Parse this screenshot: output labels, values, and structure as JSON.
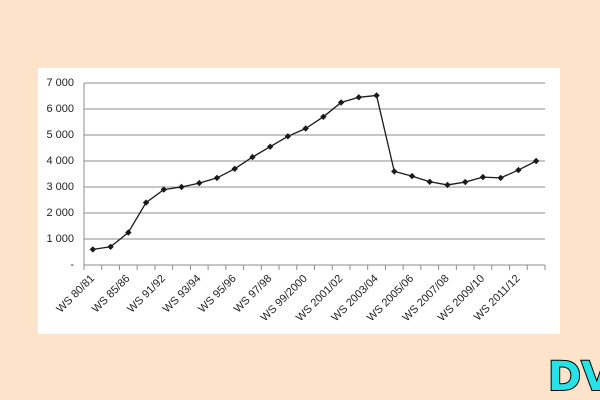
{
  "chart_data": {
    "type": "line",
    "categories": [
      "WS 80/81",
      null,
      "WS 85/86",
      null,
      "WS 91/92",
      null,
      "WS 93/94",
      null,
      "WS 95/96",
      null,
      "WS 97/98",
      null,
      "WS 99/2000",
      null,
      "WS 2001/02",
      null,
      "WS 2003/04",
      null,
      "WS 2005/06",
      null,
      "WS 2007/08",
      null,
      "WS 2009/10",
      null,
      "WS 2011/12",
      null
    ],
    "values": [
      600,
      700,
      1250,
      2400,
      2900,
      3000,
      3150,
      3350,
      3700,
      4150,
      4550,
      4950,
      5250,
      5700,
      6250,
      6450,
      6520,
      3600,
      3420,
      3200,
      3080,
      3190,
      3380,
      3350,
      3650,
      4000
    ],
    "color": "#1a1a1a",
    "ylim": [
      0,
      7000
    ],
    "yticks": [
      {
        "value": 0,
        "label": "-"
      },
      {
        "value": 1000,
        "label": "1 000"
      },
      {
        "value": 2000,
        "label": "2 000"
      },
      {
        "value": 3000,
        "label": "3 000"
      },
      {
        "value": 4000,
        "label": "4 000"
      },
      {
        "value": 5000,
        "label": "5 000"
      },
      {
        "value": 6000,
        "label": "6 000"
      },
      {
        "value": 7000,
        "label": "7 000"
      }
    ],
    "grid": true,
    "watermark": "DV"
  }
}
